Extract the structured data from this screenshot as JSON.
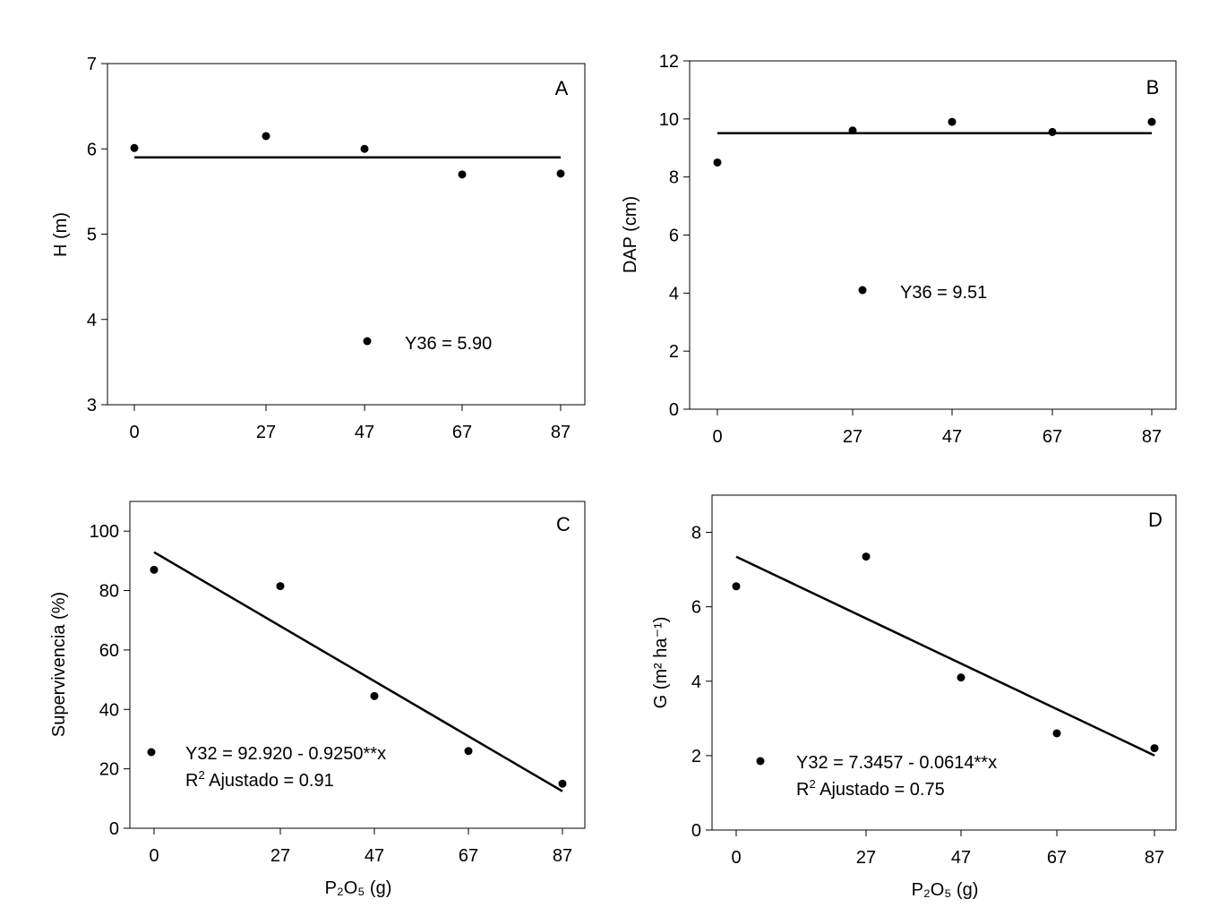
{
  "chart_data": [
    {
      "type": "scatter",
      "panel_label": "A",
      "xlabel": "",
      "ylabel": "H (m)",
      "x_ticks": [
        "0",
        "27",
        "47",
        "67",
        "87"
      ],
      "ylim": [
        3,
        7
      ],
      "y_ticks": [
        3,
        4,
        5,
        6,
        7
      ],
      "grid": false,
      "series": [
        {
          "type": "scatter",
          "x": [
            0,
            27,
            47,
            67,
            87
          ],
          "y": [
            6.01,
            6.15,
            6.0,
            5.7,
            5.71
          ]
        },
        {
          "type": "line",
          "x": [
            0,
            87
          ],
          "y": [
            5.9,
            5.9
          ]
        }
      ],
      "legend": {
        "placement": "lower-center",
        "line1": "Y36 = 5.90",
        "r2_label": "",
        "r2_value": ""
      }
    },
    {
      "type": "scatter",
      "panel_label": "B",
      "xlabel": "",
      "ylabel": "DAP (cm)",
      "x_ticks": [
        "0",
        "27",
        "47",
        "67",
        "87"
      ],
      "ylim": [
        0,
        12
      ],
      "y_ticks": [
        0,
        2,
        4,
        6,
        8,
        10,
        12
      ],
      "grid": false,
      "series": [
        {
          "type": "scatter",
          "x": [
            0,
            27,
            47,
            67,
            87
          ],
          "y": [
            8.5,
            9.6,
            9.9,
            9.55,
            9.9
          ]
        },
        {
          "type": "line",
          "x": [
            0,
            87
          ],
          "y": [
            9.51,
            9.51
          ]
        }
      ],
      "legend": {
        "placement": "center",
        "line1": "Y36 = 9.51",
        "r2_label": "",
        "r2_value": ""
      }
    },
    {
      "type": "scatter",
      "panel_label": "C",
      "xlabel": "P₂O₅ (g)",
      "ylabel": "Supervivencia (%)",
      "x_ticks": [
        "0",
        "27",
        "47",
        "67",
        "87"
      ],
      "ylim": [
        0,
        110
      ],
      "y_ticks": [
        0,
        20,
        40,
        60,
        80,
        100
      ],
      "grid": false,
      "series": [
        {
          "type": "scatter",
          "x": [
            0,
            27,
            47,
            67,
            87
          ],
          "y": [
            87,
            81.5,
            44.5,
            26,
            15
          ]
        },
        {
          "type": "line",
          "x": [
            0,
            87
          ],
          "y": [
            92.92,
            12.45
          ]
        }
      ],
      "legend": {
        "placement": "lower-left",
        "line1": "Y32 = 92.920 - 0.9250**x",
        "r2_label": "Ajustado",
        "r2_value": "0.91"
      }
    },
    {
      "type": "scatter",
      "panel_label": "D",
      "xlabel": "P₂O₅ (g)",
      "ylabel": "G (m² ha⁻¹)",
      "x_ticks": [
        "0",
        "27",
        "47",
        "67",
        "87"
      ],
      "ylim": [
        0,
        9
      ],
      "y_ticks": [
        0,
        2,
        4,
        6,
        8
      ],
      "grid": false,
      "series": [
        {
          "type": "scatter",
          "x": [
            0,
            27,
            47,
            67,
            87
          ],
          "y": [
            6.55,
            7.35,
            4.1,
            2.6,
            2.2
          ]
        },
        {
          "type": "line",
          "x": [
            0,
            87
          ],
          "y": [
            7.3457,
            2.0039
          ]
        }
      ],
      "legend": {
        "placement": "lower-left",
        "line1": "Y32 = 7.3457 - 0.0614**x",
        "r2_label": "Ajustado",
        "r2_value": "0.75"
      }
    }
  ]
}
